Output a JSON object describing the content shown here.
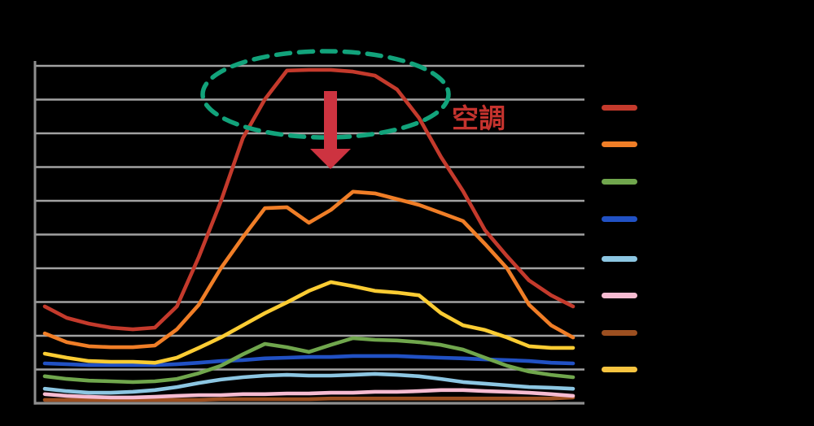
{
  "figure": {
    "background_color": "#000000",
    "title_visible": false,
    "axis_labels_visible": false,
    "tick_labels_visible": false
  },
  "annotation": {
    "label": "空調",
    "label_color": "#C5332E",
    "ellipse_color": "#12A37B",
    "arrow_color": "#CD3340"
  },
  "axes": {
    "gridline_color": "#A2A2A2",
    "axis_color": "#8F8F8F",
    "horizontal_gridlines": 11
  },
  "legend": {
    "position": "right",
    "labels_visible": false,
    "items": [
      {
        "id": "series-red",
        "color": "#C43A2C"
      },
      {
        "id": "series-orange",
        "color": "#F07E27"
      },
      {
        "id": "series-green",
        "color": "#70A64D"
      },
      {
        "id": "series-blue",
        "color": "#2151C4"
      },
      {
        "id": "series-lightblue",
        "color": "#8CC6E2"
      },
      {
        "id": "series-pink",
        "color": "#F6BBD1"
      },
      {
        "id": "series-brown",
        "color": "#9C4F20"
      },
      {
        "id": "series-gold",
        "color": "#F7C440"
      }
    ]
  },
  "chart_data": {
    "type": "line",
    "title": "",
    "xlabel": "",
    "ylabel": "",
    "x_labels_visible": false,
    "y_labels_visible": false,
    "x": [
      1,
      2,
      3,
      4,
      5,
      6,
      7,
      8,
      9,
      10,
      11,
      12,
      13,
      14,
      15,
      16,
      17,
      18,
      19,
      20,
      21,
      22,
      23,
      24,
      25
    ],
    "y_unit": "gridline divisions (numeric axis labels not visible in image)",
    "ylim": [
      0,
      10
    ],
    "grid": true,
    "legend_position": "right",
    "series": [
      {
        "name": "red",
        "color": "#C43A2C",
        "values": [
          2.87,
          2.53,
          2.36,
          2.24,
          2.19,
          2.24,
          2.87,
          4.34,
          5.98,
          7.86,
          9.01,
          9.86,
          9.88,
          9.88,
          9.83,
          9.71,
          9.3,
          8.46,
          7.3,
          6.29,
          5.13,
          4.36,
          3.64,
          3.2,
          2.87
        ]
      },
      {
        "name": "orange",
        "color": "#F07E27",
        "values": [
          2.07,
          1.81,
          1.69,
          1.66,
          1.66,
          1.71,
          2.19,
          2.92,
          4.0,
          4.92,
          5.78,
          5.81,
          5.35,
          5.73,
          6.27,
          6.22,
          6.05,
          5.88,
          5.64,
          5.4,
          4.72,
          4.0,
          2.92,
          2.31,
          1.95
        ]
      },
      {
        "name": "yellow",
        "color": "#FBCC33",
        "values": [
          1.47,
          1.35,
          1.25,
          1.23,
          1.23,
          1.2,
          1.35,
          1.64,
          1.95,
          2.31,
          2.67,
          2.99,
          3.33,
          3.59,
          3.47,
          3.33,
          3.28,
          3.2,
          2.67,
          2.31,
          2.17,
          1.95,
          1.69,
          1.64,
          1.64
        ]
      },
      {
        "name": "blue",
        "color": "#2151C4",
        "values": [
          1.18,
          1.16,
          1.13,
          1.13,
          1.13,
          1.13,
          1.16,
          1.2,
          1.25,
          1.28,
          1.33,
          1.35,
          1.37,
          1.37,
          1.4,
          1.4,
          1.4,
          1.37,
          1.35,
          1.33,
          1.3,
          1.28,
          1.25,
          1.2,
          1.18
        ]
      },
      {
        "name": "green",
        "color": "#70A64D",
        "values": [
          0.8,
          0.72,
          0.67,
          0.65,
          0.63,
          0.65,
          0.72,
          0.89,
          1.11,
          1.45,
          1.76,
          1.66,
          1.52,
          1.73,
          1.93,
          1.88,
          1.86,
          1.81,
          1.73,
          1.59,
          1.35,
          1.11,
          0.94,
          0.84,
          0.77
        ]
      },
      {
        "name": "lightblue",
        "color": "#8CC6E2",
        "values": [
          0.43,
          0.36,
          0.31,
          0.31,
          0.34,
          0.39,
          0.48,
          0.6,
          0.7,
          0.77,
          0.82,
          0.84,
          0.82,
          0.82,
          0.84,
          0.87,
          0.84,
          0.8,
          0.72,
          0.63,
          0.58,
          0.53,
          0.48,
          0.46,
          0.43
        ]
      },
      {
        "name": "pink",
        "color": "#F6BBD1",
        "values": [
          0.27,
          0.22,
          0.19,
          0.17,
          0.17,
          0.19,
          0.22,
          0.24,
          0.24,
          0.27,
          0.27,
          0.29,
          0.29,
          0.31,
          0.31,
          0.34,
          0.34,
          0.36,
          0.39,
          0.39,
          0.36,
          0.34,
          0.31,
          0.27,
          0.22
        ]
      },
      {
        "name": "brown",
        "color": "#9C4F20",
        "values": [
          0.1,
          0.1,
          0.1,
          0.1,
          0.1,
          0.1,
          0.1,
          0.1,
          0.12,
          0.12,
          0.12,
          0.12,
          0.12,
          0.14,
          0.14,
          0.14,
          0.14,
          0.14,
          0.14,
          0.14,
          0.14,
          0.14,
          0.14,
          0.14,
          0.17
        ]
      }
    ],
    "annotation": {
      "label": "空調",
      "ellipse_highlight": "dashed green ellipse around the red-series peak",
      "arrow": "red downward arrow from the highlighted peak"
    }
  }
}
